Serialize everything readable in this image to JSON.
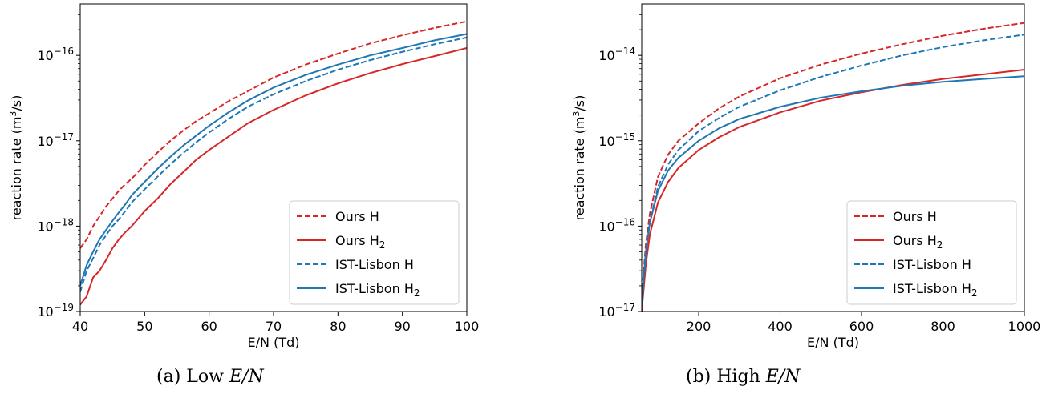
{
  "chart_data": [
    {
      "type": "line",
      "panel": "a",
      "caption_prefix": "(a) Low ",
      "caption_math": "E/N",
      "xlabel": "E/N (Td)",
      "ylabel_main": "reaction rate (m",
      "ylabel_sup": "3",
      "ylabel_end": "/s)",
      "xscale": "linear",
      "yscale": "log",
      "xlim": [
        40,
        100
      ],
      "ylim": [
        1e-19,
        4e-16
      ],
      "x_ticks": [
        40,
        50,
        60,
        70,
        80,
        90,
        100
      ],
      "y_ticks": [
        {
          "value": 1e-19,
          "exp": "−19"
        },
        {
          "value": 1e-18,
          "exp": "−18"
        },
        {
          "value": 1e-17,
          "exp": "−17"
        },
        {
          "value": 1e-16,
          "exp": "−16"
        }
      ],
      "grid": false,
      "legend_position": "lower right",
      "series": [
        {
          "name": "Ours H",
          "name_sub": "",
          "color": "#d62728",
          "dash": "dashed",
          "x": [
            40,
            41,
            42,
            43,
            44,
            45,
            46,
            47,
            48,
            50,
            52,
            54,
            56,
            58,
            60,
            63,
            66,
            70,
            75,
            80,
            85,
            90,
            95,
            100
          ],
          "y": [
            5.5e-19,
            7e-19,
            1e-18,
            1.3e-18,
            1.7e-18,
            2.1e-18,
            2.6e-18,
            3.1e-18,
            3.6e-18,
            5.2e-18,
            7.3e-18,
            1e-17,
            1.32e-17,
            1.7e-17,
            2.1e-17,
            2.9e-17,
            3.8e-17,
            5.5e-17,
            7.8e-17,
            1.05e-16,
            1.38e-16,
            1.72e-16,
            2.1e-16,
            2.5e-16
          ]
        },
        {
          "name": "Ours H",
          "name_sub": "2",
          "color": "#d62728",
          "dash": "solid",
          "x": [
            40,
            41,
            42,
            43,
            44,
            45,
            46,
            47,
            48,
            50,
            52,
            54,
            56,
            58,
            60,
            63,
            66,
            70,
            75,
            80,
            85,
            90,
            95,
            100
          ],
          "y": [
            1.2e-19,
            1.5e-19,
            2.5e-19,
            3e-19,
            4e-19,
            5.5e-19,
            7e-19,
            8.5e-19,
            1e-18,
            1.5e-18,
            2.1e-18,
            3.1e-18,
            4.3e-18,
            6e-18,
            7.8e-18,
            1.12e-17,
            1.6e-17,
            2.3e-17,
            3.4e-17,
            4.7e-17,
            6.2e-17,
            7.9e-17,
            9.8e-17,
            1.22e-16
          ]
        },
        {
          "name": "IST-Lisbon H",
          "name_sub": "",
          "color": "#1f77b4",
          "dash": "dashed",
          "x": [
            40,
            41,
            42,
            43,
            44,
            45,
            46,
            47,
            48,
            50,
            52,
            54,
            56,
            58,
            60,
            63,
            66,
            70,
            75,
            80,
            85,
            90,
            95,
            100
          ],
          "y": [
            1.7e-19,
            3e-19,
            4.2e-19,
            6e-19,
            7.8e-19,
            1e-18,
            1.2e-18,
            1.5e-18,
            1.9e-18,
            2.7e-18,
            3.8e-18,
            5.3e-18,
            7.2e-18,
            9.6e-18,
            1.25e-17,
            1.8e-17,
            2.5e-17,
            3.5e-17,
            5e-17,
            6.8e-17,
            8.8e-17,
            1.1e-16,
            1.35e-16,
            1.62e-16
          ]
        },
        {
          "name": "IST-Lisbon H",
          "name_sub": "2",
          "color": "#1f77b4",
          "dash": "solid",
          "x": [
            40,
            41,
            42,
            43,
            44,
            45,
            46,
            47,
            48,
            50,
            52,
            54,
            56,
            58,
            60,
            63,
            66,
            70,
            75,
            80,
            85,
            90,
            95,
            100
          ],
          "y": [
            2e-19,
            3.5e-19,
            5e-19,
            7e-19,
            9e-19,
            1.15e-18,
            1.45e-18,
            1.8e-18,
            2.3e-18,
            3.3e-18,
            4.7e-18,
            6.5e-18,
            8.8e-18,
            1.15e-17,
            1.5e-17,
            2.15e-17,
            2.95e-17,
            4.2e-17,
            5.9e-17,
            7.8e-17,
            1e-16,
            1.22e-16,
            1.5e-16,
            1.78e-16
          ]
        }
      ]
    },
    {
      "type": "line",
      "panel": "b",
      "caption_prefix": "(b) High ",
      "caption_math": "E/N",
      "xlabel": "E/N (Td)",
      "ylabel_main": "reaction rate (m",
      "ylabel_sup": "3",
      "ylabel_end": "/s)",
      "xscale": "linear",
      "yscale": "log",
      "xlim": [
        60,
        1000
      ],
      "ylim": [
        1e-17,
        4e-14
      ],
      "x_ticks": [
        200,
        400,
        600,
        800,
        1000
      ],
      "y_ticks": [
        {
          "value": 1e-17,
          "exp": "−17"
        },
        {
          "value": 1e-16,
          "exp": "−16"
        },
        {
          "value": 1e-15,
          "exp": "−15"
        },
        {
          "value": 1e-14,
          "exp": "−14"
        }
      ],
      "grid": false,
      "legend_position": "lower right",
      "series": [
        {
          "name": "Ours H",
          "name_sub": "",
          "color": "#d62728",
          "dash": "dashed",
          "x": [
            60,
            70,
            80,
            100,
            125,
            150,
            200,
            250,
            300,
            400,
            500,
            600,
            700,
            800,
            900,
            1000
          ],
          "y": [
            1.5e-17,
            6e-17,
            1.4e-16,
            3.8e-16,
            6.9e-16,
            1e-15,
            1.6e-15,
            2.4e-15,
            3.3e-15,
            5.4e-15,
            7.8e-15,
            1.05e-14,
            1.35e-14,
            1.7e-14,
            2.05e-14,
            2.4e-14
          ]
        },
        {
          "name": "Ours H",
          "name_sub": "2",
          "color": "#d62728",
          "dash": "solid",
          "x": [
            60,
            70,
            80,
            100,
            125,
            150,
            200,
            250,
            300,
            400,
            500,
            600,
            700,
            800,
            900,
            1000
          ],
          "y": [
            1e-17,
            3.5e-17,
            8e-17,
            1.9e-16,
            3.3e-16,
            4.8e-16,
            7.8e-16,
            1.1e-15,
            1.45e-15,
            2.15e-15,
            2.95e-15,
            3.7e-15,
            4.5e-15,
            5.3e-15,
            6e-15,
            6.8e-15
          ]
        },
        {
          "name": "IST-Lisbon H",
          "name_sub": "",
          "color": "#1f77b4",
          "dash": "dashed",
          "x": [
            60,
            70,
            80,
            100,
            125,
            150,
            200,
            250,
            300,
            400,
            500,
            600,
            700,
            800,
            900,
            1000
          ],
          "y": [
            1.2e-17,
            5e-17,
            1.1e-16,
            2.9e-16,
            5.3e-16,
            7.8e-16,
            1.3e-15,
            1.85e-15,
            2.5e-15,
            3.9e-15,
            5.6e-15,
            7.6e-15,
            1e-14,
            1.25e-14,
            1.5e-14,
            1.75e-14
          ]
        },
        {
          "name": "IST-Lisbon H",
          "name_sub": "2",
          "color": "#1f77b4",
          "dash": "solid",
          "x": [
            60,
            70,
            80,
            100,
            125,
            150,
            200,
            250,
            300,
            400,
            500,
            600,
            700,
            800,
            900,
            1000
          ],
          "y": [
            1.2e-17,
            5e-17,
            1.1e-16,
            2.6e-16,
            4.5e-16,
            6.3e-16,
            1e-15,
            1.4e-15,
            1.8e-15,
            2.5e-15,
            3.2e-15,
            3.8e-15,
            4.4e-15,
            4.9e-15,
            5.3e-15,
            5.7e-15
          ]
        }
      ]
    }
  ]
}
